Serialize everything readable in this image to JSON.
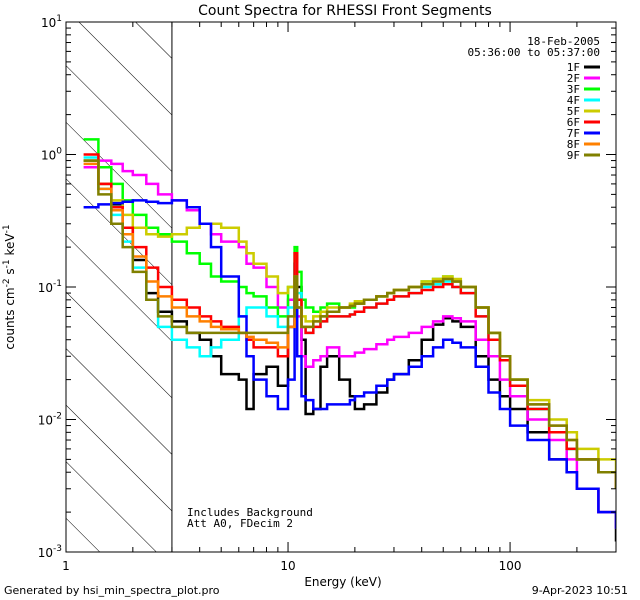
{
  "chart_data": {
    "type": "line",
    "title": "Count Spectra for RHESSI Front Segments",
    "xlabel": "Energy (keV)",
    "ylabel_parts": [
      "counts cm",
      "-2",
      " s",
      "-1",
      " keV",
      "-1"
    ],
    "xscale": "log",
    "yscale": "log",
    "xlim": [
      1,
      300
    ],
    "ylim": [
      0.001,
      10
    ],
    "x_ticks": [
      {
        "v": 1,
        "label": "1"
      },
      {
        "v": 10,
        "label": "10"
      },
      {
        "v": 100,
        "label": "100"
      }
    ],
    "y_ticks": [
      {
        "v": 0.001,
        "base": "10",
        "exp": "-3"
      },
      {
        "v": 0.01,
        "base": "10",
        "exp": "-2"
      },
      {
        "v": 0.1,
        "base": "10",
        "exp": "-1"
      },
      {
        "v": 1,
        "base": "10",
        "exp": "0"
      },
      {
        "v": 10,
        "base": "10",
        "exp": "1"
      }
    ],
    "hatched_region_max_keV": 3,
    "date": "18-Feb-2005",
    "time_range": "05:36:00 to 05:37:00",
    "annotations": [
      "Includes Background",
      "Att A0, FDecim 2"
    ],
    "legend_position": "top-right",
    "series": [
      {
        "name": "1F",
        "color": "#000000",
        "x": [
          1.2,
          1.4,
          1.6,
          1.8,
          2,
          2.3,
          2.6,
          3,
          3.5,
          4,
          4.5,
          5,
          6,
          6.5,
          7,
          8,
          9,
          10,
          10.7,
          11,
          11.5,
          12,
          13,
          14,
          15,
          17,
          19,
          20,
          22,
          25,
          28,
          30,
          35,
          40,
          45,
          50,
          55,
          60,
          70,
          80,
          90,
          100,
          120,
          150,
          180,
          200,
          250,
          300
        ],
        "y": [
          0.9,
          0.6,
          0.42,
          0.28,
          0.16,
          0.09,
          0.065,
          0.055,
          0.045,
          0.04,
          0.03,
          0.022,
          0.02,
          0.012,
          0.022,
          0.025,
          0.018,
          0.05,
          0.15,
          0.1,
          0.04,
          0.011,
          0.012,
          0.025,
          0.03,
          0.02,
          0.015,
          0.012,
          0.013,
          0.016,
          0.02,
          0.022,
          0.028,
          0.04,
          0.052,
          0.058,
          0.055,
          0.05,
          0.03,
          0.02,
          0.015,
          0.012,
          0.008,
          0.005,
          0.004,
          0.003,
          0.002,
          0.0012
        ]
      },
      {
        "name": "2F",
        "color": "#ff00ff",
        "x": [
          1.2,
          1.4,
          1.6,
          1.8,
          2,
          2.3,
          2.6,
          3,
          3.5,
          4,
          4.5,
          5,
          6,
          6.5,
          7,
          8,
          9,
          10,
          10.7,
          11,
          11.5,
          12,
          13,
          14,
          15,
          17,
          19,
          20,
          22,
          25,
          28,
          30,
          35,
          40,
          45,
          50,
          55,
          60,
          70,
          80,
          90,
          100,
          120,
          150,
          180,
          200,
          250,
          300
        ],
        "y": [
          0.8,
          0.9,
          0.85,
          0.75,
          0.7,
          0.6,
          0.5,
          0.45,
          0.38,
          0.3,
          0.25,
          0.22,
          0.2,
          0.15,
          0.14,
          0.1,
          0.07,
          0.08,
          0.12,
          0.06,
          0.03,
          0.025,
          0.028,
          0.03,
          0.035,
          0.03,
          0.03,
          0.032,
          0.034,
          0.037,
          0.04,
          0.042,
          0.045,
          0.05,
          0.055,
          0.06,
          0.058,
          0.055,
          0.04,
          0.03,
          0.02,
          0.015,
          0.01,
          0.007,
          0.005,
          0.003,
          0.002,
          0.0015
        ]
      },
      {
        "name": "3F",
        "color": "#00ff00",
        "x": [
          1.2,
          1.4,
          1.6,
          1.8,
          2,
          2.3,
          2.6,
          3,
          3.5,
          4,
          4.5,
          5,
          6,
          6.5,
          7,
          8,
          9,
          10,
          10.7,
          11,
          11.5,
          12,
          13,
          14,
          15,
          17,
          19,
          20,
          22,
          25,
          28,
          30,
          35,
          40,
          45,
          50,
          55,
          60,
          70,
          80,
          90,
          100,
          120,
          150,
          180,
          200,
          250,
          300
        ],
        "y": [
          1.3,
          0.8,
          0.6,
          0.45,
          0.35,
          0.28,
          0.25,
          0.22,
          0.18,
          0.15,
          0.12,
          0.11,
          0.1,
          0.09,
          0.085,
          0.07,
          0.06,
          0.1,
          0.2,
          0.13,
          0.08,
          0.07,
          0.065,
          0.07,
          0.075,
          0.07,
          0.07,
          0.075,
          0.08,
          0.085,
          0.09,
          0.095,
          0.1,
          0.11,
          0.115,
          0.12,
          0.11,
          0.1,
          0.07,
          0.045,
          0.03,
          0.02,
          0.012,
          0.008,
          0.006,
          0.005,
          0.004,
          0.003
        ]
      },
      {
        "name": "4F",
        "color": "#00ffff",
        "x": [
          1.2,
          1.4,
          1.6,
          1.8,
          2,
          2.3,
          2.6,
          3,
          3.5,
          4,
          4.5,
          5,
          6,
          6.5,
          7,
          8,
          9,
          10,
          10.7,
          11,
          11.5,
          12,
          13,
          14,
          15,
          17,
          19,
          20,
          22,
          25,
          28,
          30,
          35,
          40,
          45,
          50,
          55,
          60,
          70,
          80,
          90,
          100,
          120,
          150,
          180,
          200,
          250,
          300
        ],
        "y": [
          0.95,
          0.55,
          0.35,
          0.22,
          0.14,
          0.08,
          0.05,
          0.04,
          0.035,
          0.03,
          0.035,
          0.04,
          0.06,
          0.07,
          0.07,
          0.06,
          0.05,
          0.07,
          0.15,
          0.09,
          0.05,
          0.045,
          0.05,
          0.055,
          0.06,
          0.06,
          0.062,
          0.065,
          0.07,
          0.075,
          0.08,
          0.085,
          0.09,
          0.1,
          0.105,
          0.11,
          0.1,
          0.09,
          0.06,
          0.04,
          0.028,
          0.018,
          0.012,
          0.008,
          0.006,
          0.005,
          0.004,
          0.003
        ]
      },
      {
        "name": "5F",
        "color": "#cccc00",
        "x": [
          1.2,
          1.4,
          1.6,
          1.8,
          2,
          2.3,
          2.6,
          3,
          3.5,
          4,
          4.5,
          5,
          6,
          6.5,
          7,
          8,
          9,
          10,
          10.7,
          11,
          11.5,
          12,
          13,
          14,
          15,
          17,
          19,
          20,
          22,
          25,
          28,
          30,
          35,
          40,
          45,
          50,
          55,
          60,
          70,
          80,
          90,
          100,
          120,
          150,
          180,
          200,
          250,
          300
        ],
        "y": [
          0.9,
          0.6,
          0.45,
          0.35,
          0.28,
          0.25,
          0.24,
          0.25,
          0.28,
          0.3,
          0.3,
          0.28,
          0.22,
          0.18,
          0.15,
          0.12,
          0.09,
          0.1,
          0.12,
          0.08,
          0.06,
          0.055,
          0.06,
          0.065,
          0.07,
          0.07,
          0.075,
          0.078,
          0.08,
          0.085,
          0.09,
          0.095,
          0.1,
          0.11,
          0.115,
          0.12,
          0.115,
          0.1,
          0.07,
          0.045,
          0.03,
          0.02,
          0.014,
          0.01,
          0.008,
          0.006,
          0.005,
          0.004
        ]
      },
      {
        "name": "6F",
        "color": "#ff0000",
        "x": [
          1.2,
          1.4,
          1.6,
          1.8,
          2,
          2.3,
          2.6,
          3,
          3.5,
          4,
          4.5,
          5,
          6,
          6.5,
          7,
          8,
          9,
          10,
          10.7,
          11,
          11.5,
          12,
          13,
          14,
          15,
          17,
          19,
          20,
          22,
          25,
          28,
          30,
          35,
          40,
          45,
          50,
          55,
          60,
          70,
          80,
          90,
          100,
          120,
          150,
          180,
          200,
          250,
          300
        ],
        "y": [
          1.0,
          0.6,
          0.4,
          0.28,
          0.2,
          0.14,
          0.1,
          0.08,
          0.07,
          0.06,
          0.055,
          0.05,
          0.045,
          0.04,
          0.035,
          0.035,
          0.03,
          0.05,
          0.18,
          0.08,
          0.05,
          0.045,
          0.05,
          0.055,
          0.06,
          0.06,
          0.062,
          0.065,
          0.07,
          0.075,
          0.08,
          0.085,
          0.09,
          0.095,
          0.1,
          0.105,
          0.1,
          0.09,
          0.06,
          0.04,
          0.028,
          0.018,
          0.012,
          0.008,
          0.006,
          0.005,
          0.004,
          0.003
        ]
      },
      {
        "name": "7F",
        "color": "#0000ff",
        "x": [
          1.2,
          1.4,
          1.6,
          1.8,
          2,
          2.3,
          2.6,
          3,
          3.5,
          4,
          4.5,
          5,
          6,
          6.5,
          7,
          8,
          9,
          10,
          10.7,
          11,
          11.5,
          12,
          13,
          14,
          15,
          17,
          19,
          20,
          22,
          25,
          28,
          30,
          35,
          40,
          45,
          50,
          55,
          60,
          70,
          80,
          90,
          100,
          120,
          150,
          180,
          200,
          250,
          300
        ],
        "y": [
          0.4,
          0.42,
          0.43,
          0.44,
          0.45,
          0.44,
          0.43,
          0.45,
          0.4,
          0.3,
          0.2,
          0.12,
          0.06,
          0.03,
          0.02,
          0.015,
          0.012,
          0.02,
          0.1,
          0.03,
          0.015,
          0.014,
          0.012,
          0.012,
          0.013,
          0.013,
          0.014,
          0.015,
          0.016,
          0.018,
          0.02,
          0.022,
          0.025,
          0.03,
          0.035,
          0.04,
          0.038,
          0.035,
          0.025,
          0.016,
          0.012,
          0.009,
          0.007,
          0.005,
          0.004,
          0.003,
          0.002,
          0.0015
        ]
      },
      {
        "name": "8F",
        "color": "#ff8000",
        "x": [
          1.2,
          1.4,
          1.6,
          1.8,
          2,
          2.3,
          2.6,
          3,
          3.5,
          4,
          4.5,
          5,
          6,
          6.5,
          7,
          8,
          9,
          10,
          10.7,
          11,
          11.5,
          12,
          13,
          14,
          15,
          17,
          19,
          20,
          22,
          25,
          28,
          30,
          35,
          40,
          45,
          50,
          55,
          60,
          70,
          80,
          90,
          100,
          120,
          150,
          180,
          200,
          250,
          300
        ],
        "y": [
          0.85,
          0.55,
          0.38,
          0.25,
          0.17,
          0.11,
          0.085,
          0.07,
          0.06,
          0.055,
          0.05,
          0.048,
          0.045,
          0.042,
          0.04,
          0.038,
          0.035,
          0.05,
          0.12,
          0.07,
          0.05,
          0.05,
          0.055,
          0.06,
          0.065,
          0.07,
          0.072,
          0.075,
          0.08,
          0.085,
          0.09,
          0.095,
          0.1,
          0.105,
          0.11,
          0.115,
          0.11,
          0.1,
          0.07,
          0.045,
          0.03,
          0.02,
          0.013,
          0.009,
          0.007,
          0.005,
          0.004,
          0.003
        ]
      },
      {
        "name": "9F",
        "color": "#808000",
        "x": [
          1.2,
          1.4,
          1.6,
          1.8,
          2,
          2.3,
          2.6,
          3,
          3.5,
          4,
          4.5,
          5,
          6,
          6.5,
          7,
          8,
          9,
          10,
          10.7,
          11,
          11.5,
          12,
          13,
          14,
          15,
          17,
          19,
          20,
          22,
          25,
          28,
          30,
          35,
          40,
          45,
          50,
          55,
          60,
          70,
          80,
          90,
          100,
          120,
          150,
          180,
          200,
          250,
          300
        ],
        "y": [
          0.9,
          0.5,
          0.3,
          0.2,
          0.13,
          0.08,
          0.06,
          0.05,
          0.045,
          0.045,
          0.045,
          0.045,
          0.045,
          0.045,
          0.045,
          0.045,
          0.045,
          0.06,
          0.12,
          0.07,
          0.05,
          0.05,
          0.055,
          0.06,
          0.065,
          0.07,
          0.072,
          0.075,
          0.08,
          0.085,
          0.09,
          0.095,
          0.1,
          0.105,
          0.11,
          0.115,
          0.11,
          0.1,
          0.07,
          0.045,
          0.03,
          0.02,
          0.013,
          0.009,
          0.007,
          0.005,
          0.004,
          0.003
        ]
      }
    ]
  },
  "footer": {
    "generated_by": "Generated by hsi_min_spectra_plot.pro",
    "timestamp": "9-Apr-2023 10:51"
  }
}
